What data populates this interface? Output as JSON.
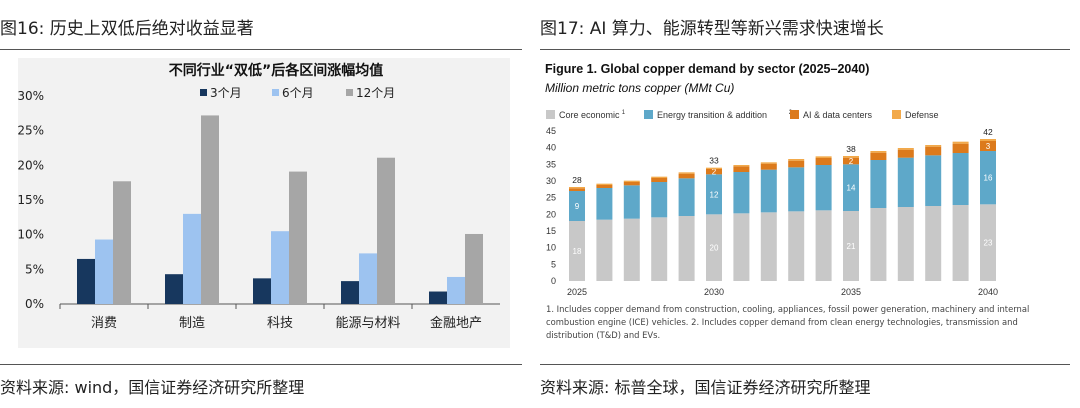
{
  "left": {
    "figure_title": "图16: 历史上双低后绝对收益显著",
    "source": "资料来源: wind，国信证券经济研究所整理",
    "colors": {
      "3m": "#17375e",
      "6m": "#9dc3f0",
      "12m": "#a6a6a6"
    }
  },
  "right": {
    "figure_title": "图17: AI 算力、能源转型等新兴需求快速增长",
    "source": "资料来源: 标普全球，国信证券经济研究所整理",
    "note": "1. Includes copper demand from construction, cooling, appliances, fossil power generation, machinery and internal combustion engine (ICE) vehicles. 2. Includes copper demand from clean energy technologies, transmission and distribution (T&D) and EVs.",
    "colors": {
      "core": "#c8c8c8",
      "energy": "#5ea8c9",
      "ai": "#dc7a1c",
      "defense": "#f2a94a"
    }
  },
  "chart_data": [
    {
      "type": "bar",
      "title": "不同行业“双低”后各区间涨幅均值",
      "categories": [
        "消费",
        "制造",
        "科技",
        "能源与材料",
        "金融地产"
      ],
      "series": [
        {
          "name": "3个月",
          "values": [
            6.5,
            4.3,
            3.7,
            3.3,
            1.8
          ]
        },
        {
          "name": "6个月",
          "values": [
            9.3,
            13.0,
            10.5,
            7.3,
            3.9
          ]
        },
        {
          "name": "12个月",
          "values": [
            17.7,
            27.2,
            19.1,
            21.1,
            10.1
          ]
        }
      ],
      "ylim": [
        0,
        30
      ],
      "yticks": [
        "0%",
        "5%",
        "10%",
        "15%",
        "20%",
        "25%",
        "30%"
      ],
      "legend_position": "top",
      "grid": false
    },
    {
      "type": "bar",
      "stacked": true,
      "title": "Figure 1. Global copper demand by sector (2025–2040)",
      "subtitle": "Million metric tons copper (MMt Cu)",
      "x": [
        2025,
        2026,
        2027,
        2028,
        2029,
        2030,
        2031,
        2032,
        2033,
        2034,
        2035,
        2036,
        2037,
        2038,
        2039,
        2040
      ],
      "xticks": [
        "2025",
        "2030",
        "2035",
        "2040"
      ],
      "series": [
        {
          "name": "Core economic",
          "name_sup": "1",
          "values": [
            18,
            18.4,
            18.7,
            19.1,
            19.5,
            20,
            20.3,
            20.6,
            20.9,
            21.2,
            21,
            21.9,
            22.2,
            22.5,
            22.8,
            23
          ]
        },
        {
          "name": "Energy transition & addition",
          "name_sup": "2",
          "values": [
            9,
            9.5,
            10,
            10.6,
            11.3,
            12,
            12.4,
            12.8,
            13.2,
            13.6,
            14,
            14.4,
            14.8,
            15.2,
            15.6,
            16
          ]
        },
        {
          "name": "AI & data centers",
          "values": [
            0.8,
            0.9,
            1.0,
            1.2,
            1.4,
            1.6,
            1.7,
            1.8,
            2.0,
            2.1,
            2.0,
            2.2,
            2.4,
            2.6,
            2.8,
            3.0
          ]
        },
        {
          "name": "Defense",
          "values": [
            0.4,
            0.4,
            0.4,
            0.4,
            0.4,
            0.4,
            0.4,
            0.4,
            0.5,
            0.5,
            0.5,
            0.5,
            0.5,
            0.5,
            0.6,
            0.6
          ]
        }
      ],
      "totals_shown": {
        "2025": 28,
        "2030": 33,
        "2035": 38,
        "2040": 42
      },
      "segment_labels": {
        "2025": [
          "18",
          "9",
          "",
          ""
        ],
        "2030": [
          "20",
          "12",
          "2",
          ""
        ],
        "2035": [
          "21",
          "14",
          "2",
          ""
        ],
        "2040": [
          "23",
          "16",
          "3",
          ""
        ]
      },
      "ylim": [
        0,
        45
      ],
      "yticks": [
        0,
        5,
        10,
        15,
        20,
        25,
        30,
        35,
        40,
        45
      ],
      "legend_position": "top",
      "grid": false
    }
  ]
}
